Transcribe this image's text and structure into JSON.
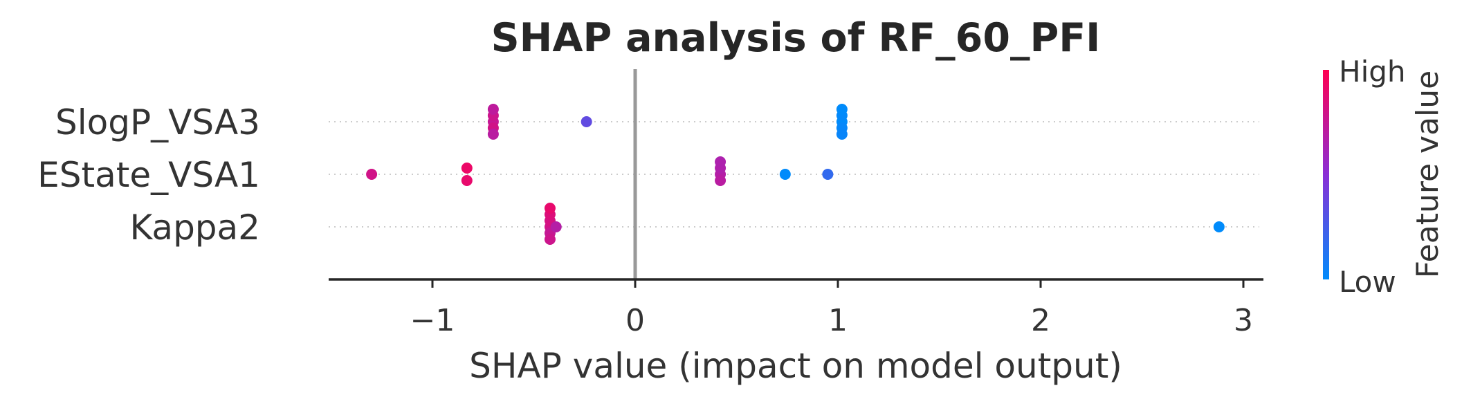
{
  "chart_data": {
    "type": "scatter",
    "title": "SHAP analysis of RF_60_PFI",
    "xlabel": "SHAP value (impact on model output)",
    "xlim": [
      -1.5,
      3.1
    ],
    "xticks": [
      -1,
      0,
      1,
      2,
      3
    ],
    "xtick_labels": [
      "−1",
      "0",
      "1",
      "2",
      "3"
    ],
    "features": [
      "SlogP_VSA3",
      "EState_VSA1",
      "Kappa2"
    ],
    "colorbar": {
      "title": "Feature value",
      "high_label": "High",
      "low_label": "Low",
      "high_color": "#ff0052",
      "low_color": "#008bfb"
    },
    "zero_line_color": "#999999",
    "series": [
      {
        "feature": "SlogP_VSA3",
        "points": [
          {
            "shap": -0.7,
            "value": 0.75,
            "offset": 0
          },
          {
            "shap": -0.7,
            "value": 0.8,
            "offset": 1
          },
          {
            "shap": -0.7,
            "value": 0.78,
            "offset": -1
          },
          {
            "shap": -0.7,
            "value": 0.7,
            "offset": 2
          },
          {
            "shap": -0.7,
            "value": 0.72,
            "offset": -2
          },
          {
            "shap": -0.24,
            "value": 0.35,
            "offset": 0
          },
          {
            "shap": 1.02,
            "value": 0.0,
            "offset": 0
          },
          {
            "shap": 1.02,
            "value": 0.02,
            "offset": 1
          },
          {
            "shap": 1.02,
            "value": 0.01,
            "offset": -1
          },
          {
            "shap": 1.02,
            "value": 0.03,
            "offset": 2
          },
          {
            "shap": 1.02,
            "value": 0.0,
            "offset": -2
          }
        ]
      },
      {
        "feature": "EState_VSA1",
        "points": [
          {
            "shap": -1.3,
            "value": 0.8,
            "offset": 0
          },
          {
            "shap": -0.83,
            "value": 0.9,
            "offset": 1
          },
          {
            "shap": -0.83,
            "value": 0.92,
            "offset": -1
          },
          {
            "shap": 0.42,
            "value": 0.68,
            "offset": 0
          },
          {
            "shap": 0.42,
            "value": 0.7,
            "offset": 1
          },
          {
            "shap": 0.42,
            "value": 0.66,
            "offset": -1
          },
          {
            "shap": 0.42,
            "value": 0.65,
            "offset": -2
          },
          {
            "shap": 0.74,
            "value": 0.0,
            "offset": 0
          },
          {
            "shap": 0.95,
            "value": 0.18,
            "offset": 0
          }
        ]
      },
      {
        "feature": "Kappa2",
        "points": [
          {
            "shap": -0.42,
            "value": 0.8,
            "offset": 0
          },
          {
            "shap": -0.42,
            "value": 0.75,
            "offset": 1
          },
          {
            "shap": -0.42,
            "value": 0.82,
            "offset": -1
          },
          {
            "shap": -0.42,
            "value": 0.78,
            "offset": 2
          },
          {
            "shap": -0.42,
            "value": 0.85,
            "offset": -2
          },
          {
            "shap": -0.42,
            "value": 0.9,
            "offset": -3
          },
          {
            "shap": -0.39,
            "value": 0.68,
            "offset": 0
          },
          {
            "shap": 2.88,
            "value": 0.0,
            "offset": 0
          }
        ]
      }
    ]
  }
}
